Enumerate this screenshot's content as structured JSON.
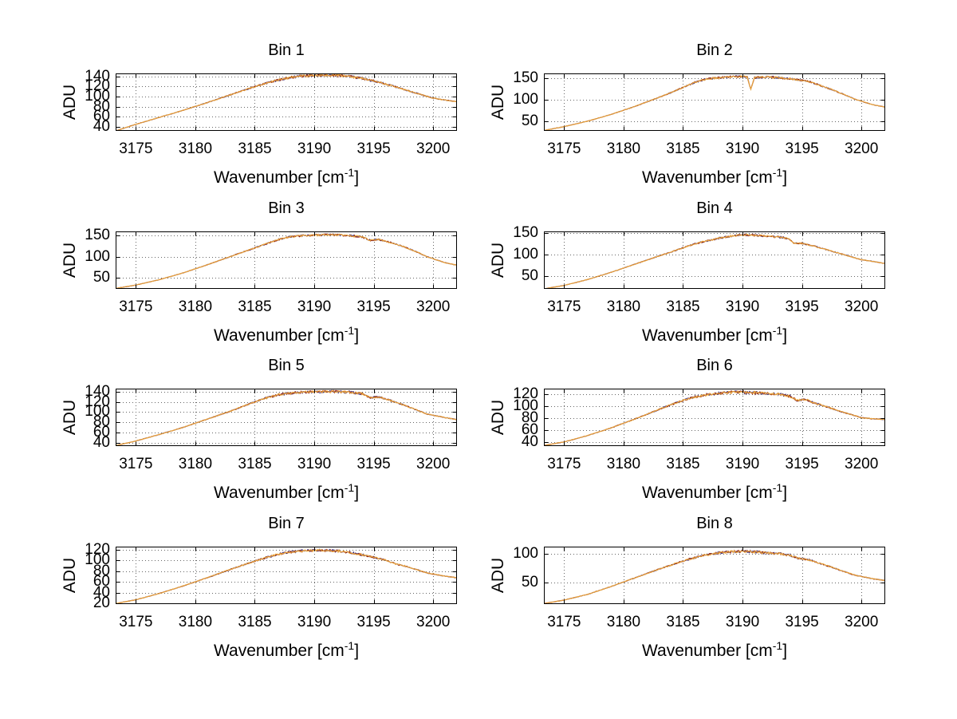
{
  "figure": {
    "background": "#ffffff",
    "description": "4x2 grid of spectral line plots, ADU versus wavenumber, bins 1-8"
  },
  "chart_data": {
    "type": "line",
    "layout": "grid-4x2",
    "grid": "dotted",
    "legend": "none",
    "ylabel": "ADU",
    "xlabel": {
      "pre": "Wavenumber [cm",
      "sup": "-1",
      "post": "]"
    },
    "xlim": [
      3173.3,
      3202
    ],
    "xticks": [
      "3175",
      "3180",
      "3185",
      "3190",
      "3195",
      "3200"
    ],
    "xtick_values": [
      3175,
      3180,
      3185,
      3190,
      3195,
      3200
    ],
    "line_colors": [
      "#44357F",
      "#8C1A0A",
      "#E8A23B"
    ],
    "axis_color": "#000000",
    "grid_color": "#666666",
    "plots": [
      {
        "title": "Bin 1",
        "ylim": [
          32,
          146
        ],
        "yticks": [
          "40",
          "60",
          "80",
          "100",
          "120",
          "140"
        ],
        "ytick_values": [
          40,
          60,
          80,
          100,
          120,
          140
        ],
        "points": [
          [
            3173.3,
            32
          ],
          [
            3175,
            45
          ],
          [
            3177,
            59
          ],
          [
            3179,
            73
          ],
          [
            3181,
            88
          ],
          [
            3183,
            104
          ],
          [
            3185,
            120
          ],
          [
            3186,
            127
          ],
          [
            3187,
            133
          ],
          [
            3188,
            138
          ],
          [
            3189,
            141
          ],
          [
            3190,
            142
          ],
          [
            3191,
            143
          ],
          [
            3192,
            142
          ],
          [
            3193,
            140
          ],
          [
            3194,
            136
          ],
          [
            3195,
            131
          ],
          [
            3196,
            125
          ],
          [
            3197,
            118
          ],
          [
            3198,
            111
          ],
          [
            3199,
            104
          ],
          [
            3200,
            97
          ],
          [
            3201,
            93
          ],
          [
            3202,
            90
          ]
        ]
      },
      {
        "title": "Bin 2",
        "ylim": [
          27,
          162
        ],
        "yticks": [
          "50",
          "100",
          "150"
        ],
        "ytick_values": [
          50,
          100,
          150
        ],
        "points": [
          [
            3173.3,
            28
          ],
          [
            3175,
            37
          ],
          [
            3177,
            50
          ],
          [
            3179,
            66
          ],
          [
            3181,
            85
          ],
          [
            3183,
            106
          ],
          [
            3184,
            117
          ],
          [
            3185,
            129
          ],
          [
            3186,
            141
          ],
          [
            3187,
            149
          ],
          [
            3188,
            152
          ],
          [
            3189,
            154
          ],
          [
            3190,
            155
          ],
          [
            3190.4,
            154
          ],
          [
            3190.7,
            125
          ],
          [
            3191,
            152
          ],
          [
            3192,
            154
          ],
          [
            3193,
            152
          ],
          [
            3194,
            149
          ],
          [
            3195,
            146
          ],
          [
            3195.7,
            142
          ],
          [
            3196.5,
            134
          ],
          [
            3197.5,
            124
          ],
          [
            3198.5,
            113
          ],
          [
            3199.5,
            101
          ],
          [
            3201,
            88
          ],
          [
            3202,
            83
          ]
        ]
      },
      {
        "title": "Bin 3",
        "ylim": [
          24,
          160
        ],
        "yticks": [
          "50",
          "100",
          "150"
        ],
        "ytick_values": [
          50,
          100,
          150
        ],
        "points": [
          [
            3173.3,
            25
          ],
          [
            3175,
            33
          ],
          [
            3177,
            46
          ],
          [
            3179,
            62
          ],
          [
            3181,
            81
          ],
          [
            3183,
            101
          ],
          [
            3185,
            121
          ],
          [
            3186,
            131
          ],
          [
            3187,
            141
          ],
          [
            3188,
            147
          ],
          [
            3189,
            150
          ],
          [
            3190,
            151
          ],
          [
            3191,
            152
          ],
          [
            3192,
            152
          ],
          [
            3193,
            150
          ],
          [
            3194,
            147
          ],
          [
            3194.7,
            139
          ],
          [
            3195.4,
            141
          ],
          [
            3196.5,
            133
          ],
          [
            3197.5,
            124
          ],
          [
            3198.5,
            113
          ],
          [
            3199.5,
            100
          ],
          [
            3201,
            86
          ],
          [
            3202,
            80
          ]
        ]
      },
      {
        "title": "Bin 4",
        "ylim": [
          20,
          154
        ],
        "yticks": [
          "50",
          "100",
          "150"
        ],
        "ytick_values": [
          50,
          100,
          150
        ],
        "points": [
          [
            3173.3,
            20
          ],
          [
            3175,
            28
          ],
          [
            3177,
            42
          ],
          [
            3179,
            59
          ],
          [
            3181,
            78
          ],
          [
            3183,
            97
          ],
          [
            3184,
            106
          ],
          [
            3185,
            116
          ],
          [
            3186,
            125
          ],
          [
            3187,
            132
          ],
          [
            3188,
            138
          ],
          [
            3189,
            143
          ],
          [
            3190,
            146
          ],
          [
            3191,
            145
          ],
          [
            3192,
            143
          ],
          [
            3193,
            141
          ],
          [
            3193.8,
            138
          ],
          [
            3194.3,
            127
          ],
          [
            3195,
            126
          ],
          [
            3196,
            120
          ],
          [
            3197,
            112
          ],
          [
            3198,
            104
          ],
          [
            3199,
            96
          ],
          [
            3200,
            88
          ],
          [
            3201,
            84
          ],
          [
            3202,
            79
          ]
        ]
      },
      {
        "title": "Bin 5",
        "ylim": [
          33,
          146
        ],
        "yticks": [
          "40",
          "60",
          "80",
          "100",
          "120",
          "140"
        ],
        "ytick_values": [
          40,
          60,
          80,
          100,
          120,
          140
        ],
        "points": [
          [
            3173.3,
            34
          ],
          [
            3175,
            43
          ],
          [
            3177,
            56
          ],
          [
            3179,
            70
          ],
          [
            3181,
            86
          ],
          [
            3183,
            102
          ],
          [
            3185,
            120
          ],
          [
            3186,
            128
          ],
          [
            3187,
            134
          ],
          [
            3188,
            137
          ],
          [
            3189,
            139
          ],
          [
            3190,
            140
          ],
          [
            3191,
            140
          ],
          [
            3192,
            140
          ],
          [
            3193,
            139
          ],
          [
            3194,
            136
          ],
          [
            3194.7,
            128
          ],
          [
            3195.4,
            130
          ],
          [
            3196.5,
            122
          ],
          [
            3197.5,
            114
          ],
          [
            3198.5,
            105
          ],
          [
            3199.5,
            96
          ],
          [
            3201,
            89
          ],
          [
            3202,
            85
          ]
        ]
      },
      {
        "title": "Bin 6",
        "ylim": [
          33,
          130
        ],
        "yticks": [
          "40",
          "60",
          "80",
          "100",
          "120"
        ],
        "ytick_values": [
          40,
          60,
          80,
          100,
          120
        ],
        "points": [
          [
            3173.3,
            34
          ],
          [
            3175,
            40
          ],
          [
            3177,
            51
          ],
          [
            3179,
            64
          ],
          [
            3181,
            79
          ],
          [
            3183,
            95
          ],
          [
            3184,
            103
          ],
          [
            3185,
            110
          ],
          [
            3186,
            116
          ],
          [
            3187,
            120
          ],
          [
            3188,
            122
          ],
          [
            3189,
            124
          ],
          [
            3190,
            124
          ],
          [
            3191,
            123
          ],
          [
            3192,
            122
          ],
          [
            3193,
            121
          ],
          [
            3194,
            117
          ],
          [
            3194.6,
            110
          ],
          [
            3195.3,
            112
          ],
          [
            3196,
            106
          ],
          [
            3197,
            100
          ],
          [
            3198,
            93
          ],
          [
            3199,
            87
          ],
          [
            3200,
            81
          ],
          [
            3201,
            79
          ],
          [
            3202,
            78
          ]
        ]
      },
      {
        "title": "Bin 7",
        "ylim": [
          19,
          126
        ],
        "yticks": [
          "20",
          "40",
          "60",
          "80",
          "100",
          "120"
        ],
        "ytick_values": [
          20,
          40,
          60,
          80,
          100,
          120
        ],
        "points": [
          [
            3173.3,
            20
          ],
          [
            3175,
            27
          ],
          [
            3177,
            39
          ],
          [
            3179,
            53
          ],
          [
            3181,
            68
          ],
          [
            3183,
            84
          ],
          [
            3185,
            99
          ],
          [
            3186,
            106
          ],
          [
            3187,
            112
          ],
          [
            3188,
            116
          ],
          [
            3189,
            118
          ],
          [
            3190,
            119
          ],
          [
            3191,
            119
          ],
          [
            3192,
            118
          ],
          [
            3193,
            115
          ],
          [
            3194,
            111
          ],
          [
            3195,
            106
          ],
          [
            3196,
            101
          ],
          [
            3196.8,
            94
          ],
          [
            3197.6,
            90
          ],
          [
            3198.5,
            84
          ],
          [
            3199.5,
            77
          ],
          [
            3201,
            71
          ],
          [
            3202,
            68
          ]
        ]
      },
      {
        "title": "Bin 8",
        "ylim": [
          13,
          113
        ],
        "yticks": [
          "50",
          "100"
        ],
        "ytick_values": [
          50,
          100
        ],
        "points": [
          [
            3173.3,
            14
          ],
          [
            3175,
            20
          ],
          [
            3177,
            30
          ],
          [
            3179,
            44
          ],
          [
            3181,
            59
          ],
          [
            3183,
            74
          ],
          [
            3184,
            81
          ],
          [
            3185,
            88
          ],
          [
            3186,
            94
          ],
          [
            3187,
            99
          ],
          [
            3188,
            102
          ],
          [
            3189,
            104
          ],
          [
            3190,
            105
          ],
          [
            3191,
            104
          ],
          [
            3192,
            102
          ],
          [
            3193,
            101
          ],
          [
            3194,
            98
          ],
          [
            3194.8,
            92
          ],
          [
            3195.6,
            90
          ],
          [
            3196.5,
            84
          ],
          [
            3197.5,
            77
          ],
          [
            3198.5,
            70
          ],
          [
            3199.5,
            63
          ],
          [
            3201,
            57
          ],
          [
            3202,
            54
          ]
        ]
      }
    ]
  }
}
